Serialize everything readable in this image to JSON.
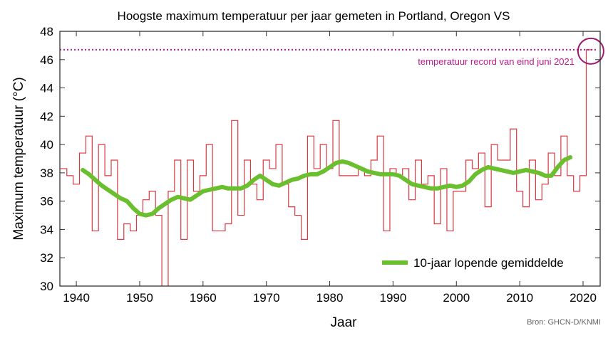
{
  "chart_data": {
    "type": "line",
    "title": "Hoogste maximum temperatuur per jaar gemeten in Portland, Oregon VS",
    "xlabel": "Jaar",
    "ylabel": "Maximum temperatuur (°C)",
    "xlim": [
      1937.4,
      2022.7
    ],
    "ylim": [
      30,
      48
    ],
    "xticks": [
      1940,
      1950,
      1960,
      1970,
      1980,
      1990,
      2000,
      2010,
      2020
    ],
    "yticks": [
      30,
      32,
      34,
      36,
      38,
      40,
      42,
      44,
      46,
      48
    ],
    "grid": false,
    "legend_position": "bottom-right",
    "source": "Bron: GHCN-D/KNMI",
    "annotation": {
      "text": "temperatuur record van eind juni 2021",
      "value": 46.7,
      "color": "#c0178a"
    },
    "series": [
      {
        "style": "steps",
        "color": "#d9393f",
        "x_start": 1938,
        "values": [
          38.3,
          37.8,
          37.2,
          39.4,
          40.6,
          33.9,
          40.0,
          37.8,
          38.9,
          33.3,
          34.4,
          33.9,
          35.0,
          36.1,
          36.7,
          35.0,
          28.0,
          36.7,
          38.9,
          33.3,
          38.9,
          36.7,
          37.8,
          40.0,
          33.9,
          33.9,
          34.4,
          41.7,
          35.0,
          38.9,
          37.2,
          36.1,
          38.9,
          38.3,
          40.0,
          37.2,
          35.6,
          35.0,
          33.3,
          40.6,
          38.3,
          40.0,
          38.3,
          41.7,
          37.8,
          37.8,
          37.8,
          38.3,
          37.8,
          38.9,
          40.6,
          33.9,
          38.3,
          37.8,
          38.3,
          36.1,
          38.9,
          37.2,
          37.8,
          34.4,
          38.3,
          33.9,
          36.7,
          36.7,
          38.9,
          38.3,
          39.4,
          35.6,
          40.0,
          38.9,
          38.9,
          41.1,
          36.7,
          35.6,
          38.9,
          36.1,
          37.2,
          39.4,
          37.8,
          40.6,
          37.8,
          36.7,
          37.8,
          46.7
        ]
      },
      {
        "name": "10-jaar lopende gemiddelde",
        "style": "thick-line",
        "color": "#6abf2e",
        "x_start": 1941,
        "values": [
          38.2,
          37.9,
          37.5,
          37.1,
          36.8,
          36.5,
          36.2,
          36.0,
          35.5,
          35.1,
          35.0,
          35.1,
          35.5,
          35.8,
          36.1,
          36.3,
          36.2,
          36.1,
          36.4,
          36.7,
          36.8,
          36.9,
          37.0,
          36.9,
          36.9,
          36.9,
          37.1,
          37.5,
          37.8,
          37.5,
          37.2,
          37.1,
          37.3,
          37.5,
          37.6,
          37.8,
          37.9,
          37.9,
          38.1,
          38.4,
          38.7,
          38.8,
          38.7,
          38.5,
          38.3,
          38.1,
          38.0,
          37.9,
          37.9,
          37.9,
          37.8,
          37.5,
          37.2,
          37.1,
          37.0,
          36.9,
          36.9,
          37.0,
          37.1,
          37.0,
          37.1,
          37.4,
          37.9,
          38.2,
          38.4,
          38.3,
          38.2,
          38.1,
          38.0,
          38.1,
          38.2,
          38.1,
          38.0,
          37.8,
          37.8,
          38.4,
          38.9,
          39.1
        ]
      }
    ]
  }
}
